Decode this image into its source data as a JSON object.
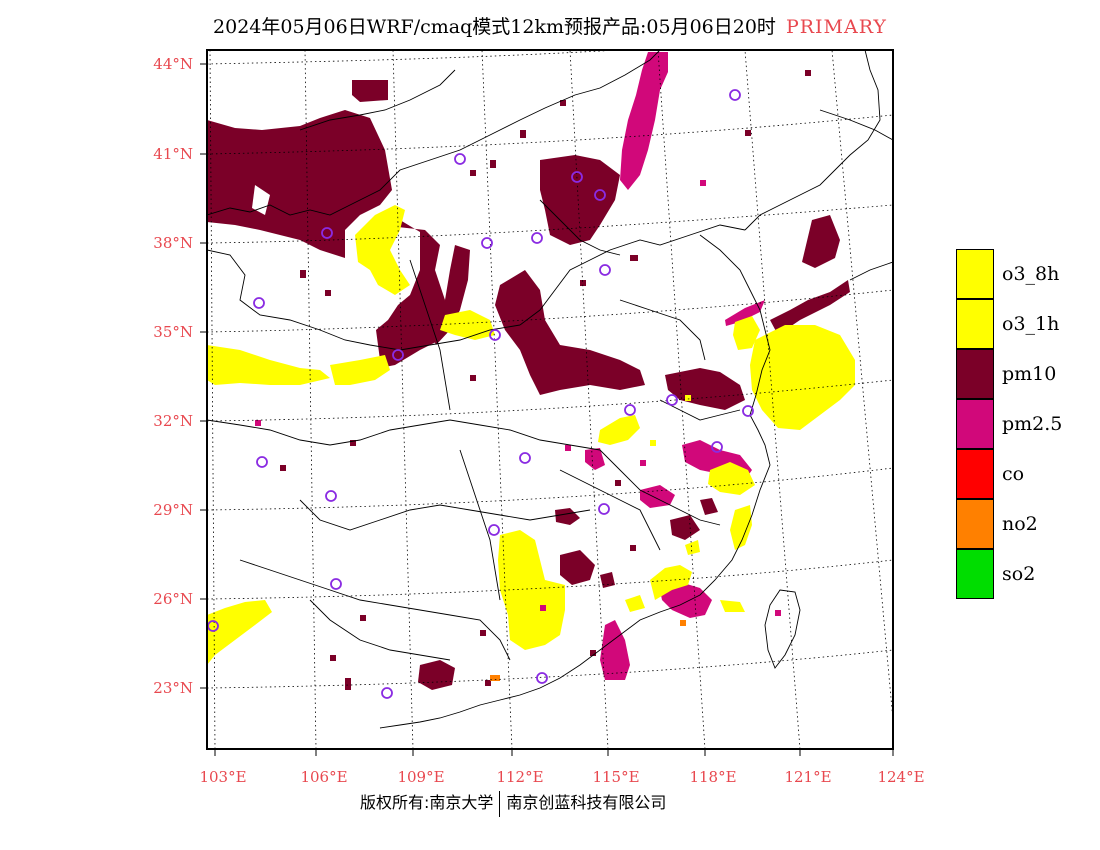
{
  "title": {
    "main": "2024年05月06日WRF/cmaq模式12km预报产品:05月06日20时",
    "tag": "PRIMARY",
    "tag_color": "#e8484f"
  },
  "map": {
    "lat_labels": [
      "44°N",
      "41°N",
      "38°N",
      "35°N",
      "32°N",
      "29°N",
      "26°N",
      "23°N"
    ],
    "lon_labels": [
      "103°E",
      "106°E",
      "109°E",
      "112°E",
      "115°E",
      "118°E",
      "121°E",
      "124°E"
    ],
    "label_color": "#e8484f",
    "station_marker_color": "#8a2be2"
  },
  "legend": {
    "items": [
      {
        "label": "o3_8h",
        "color": "#ffff00"
      },
      {
        "label": "o3_1h",
        "color": "#ffff00"
      },
      {
        "label": "pm10",
        "color": "#7b0028"
      },
      {
        "label": "pm2.5",
        "color": "#d1087a"
      },
      {
        "label": "co",
        "color": "#ff0000"
      },
      {
        "label": "no2",
        "color": "#ff8000"
      },
      {
        "label": "so2",
        "color": "#00dd00"
      }
    ]
  },
  "footer": {
    "left": "版权所有:南京大学",
    "right": "南京创蓝科技有限公司"
  }
}
